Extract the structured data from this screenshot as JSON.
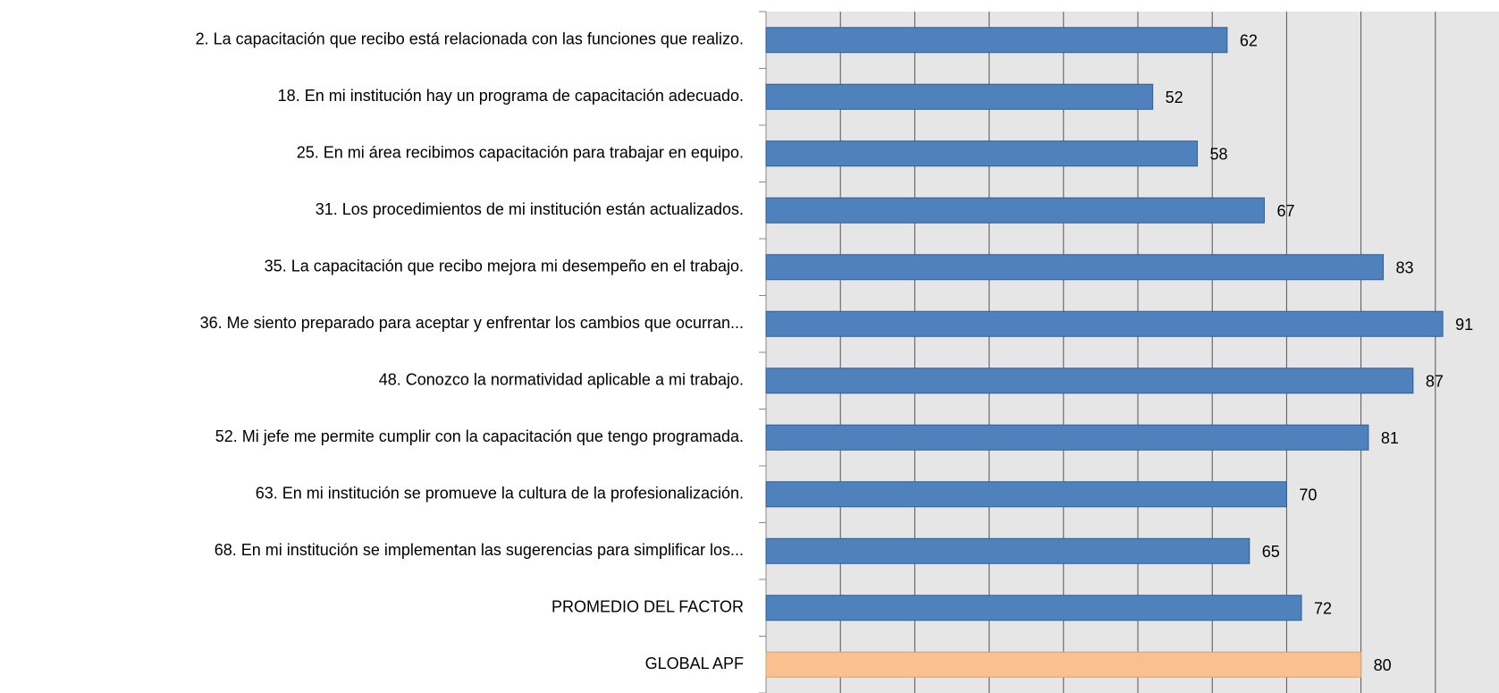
{
  "chart_data": {
    "type": "barh",
    "categories": [
      "2. La capacitación que recibo está relacionada con las funciones que realizo.",
      "18. En mi institución hay un programa de capacitación adecuado.",
      "25. En mi área recibimos capacitación para trabajar en equipo.",
      "31. Los procedimientos de mi institución están actualizados.",
      "35. La capacitación que recibo mejora mi desempeño en el trabajo.",
      "36. Me siento preparado para aceptar y enfrentar los cambios que ocurran...",
      "48. Conozco la normatividad aplicable a mi trabajo.",
      "52. Mi jefe me permite cumplir con la capacitación que tengo programada.",
      "63. En mi institución se promueve la cultura de la profesionalización.",
      "68. En mi institución se implementan las sugerencias para simplificar los...",
      "PROMEDIO DEL FACTOR",
      "GLOBAL APF"
    ],
    "values": [
      62,
      52,
      58,
      67,
      83,
      91,
      87,
      81,
      70,
      65,
      72,
      80
    ],
    "colors": [
      "#4f81bd",
      "#4f81bd",
      "#4f81bd",
      "#4f81bd",
      "#4f81bd",
      "#4f81bd",
      "#4f81bd",
      "#4f81bd",
      "#4f81bd",
      "#4f81bd",
      "#4f81bd",
      "#fac090"
    ],
    "xlim": [
      0,
      100
    ],
    "xticks": [
      0,
      10,
      20,
      30,
      40,
      50,
      60,
      70,
      80,
      90
    ],
    "grid": true
  }
}
